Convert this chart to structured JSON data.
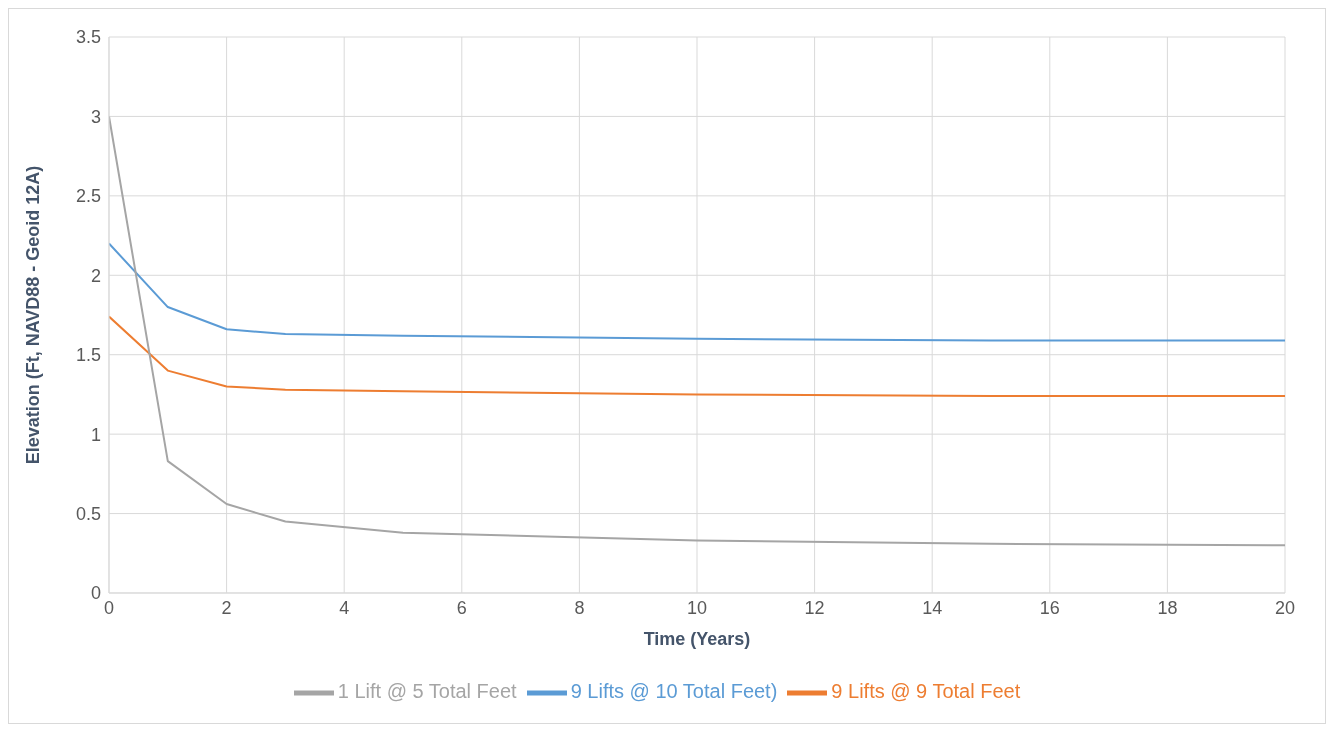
{
  "chart_data": {
    "type": "line",
    "xlabel": "Time (Years)",
    "ylabel": "Elevation (Ft, NAVD88 - Geoid 12A)",
    "x": [
      0,
      1,
      2,
      3,
      5,
      10,
      15,
      20
    ],
    "series": [
      {
        "name": "9 Lifts @ 10 Total Feet)",
        "color": "#5b9bd5",
        "values": [
          2.2,
          1.8,
          1.66,
          1.63,
          1.62,
          1.6,
          1.59,
          1.59
        ]
      },
      {
        "name": "9 Lifts @ 9 Total Feet",
        "color": "#ed7d31",
        "values": [
          1.74,
          1.4,
          1.3,
          1.28,
          1.27,
          1.25,
          1.24,
          1.24
        ]
      },
      {
        "name": "1 Lift @ 5 Total Feet",
        "color": "#a5a5a5",
        "values": [
          3.0,
          0.83,
          0.56,
          0.45,
          0.38,
          0.33,
          0.31,
          0.3
        ]
      }
    ],
    "xlim": [
      0,
      20
    ],
    "xticks": [
      0,
      2,
      4,
      6,
      8,
      10,
      12,
      14,
      16,
      18,
      20
    ],
    "ylim": [
      0,
      3.5
    ],
    "yticks": [
      0,
      0.5,
      1,
      1.5,
      2,
      2.5,
      3,
      3.5
    ],
    "grid": true,
    "legend": "bottom",
    "marker": "none",
    "line_style": "solid"
  }
}
